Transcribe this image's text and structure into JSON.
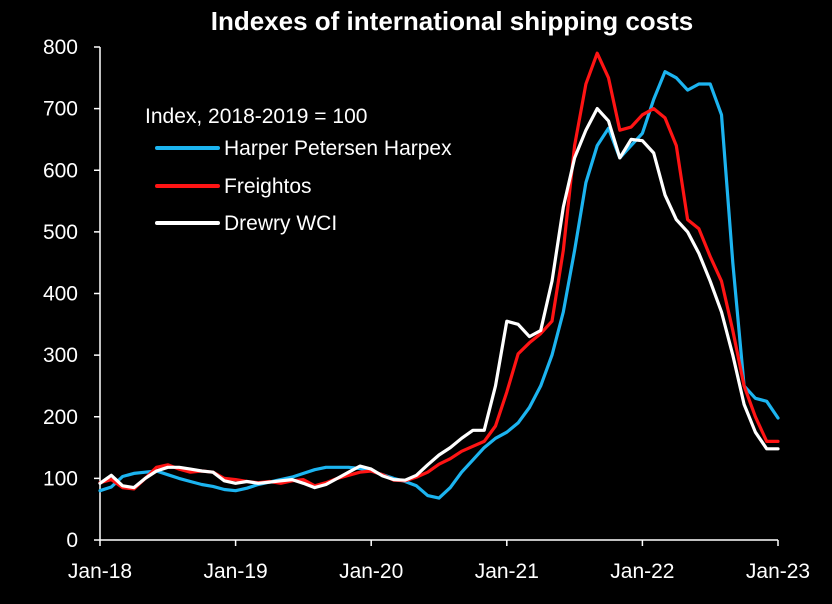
{
  "chart_data": {
    "type": "line",
    "title": "Indexes of international shipping costs",
    "xlabel": "",
    "ylabel": "",
    "legend_title": "Index, 2018-2019 = 100",
    "legend_position": "top-left",
    "grid": false,
    "xlim": [
      "2018-01",
      "2023-01"
    ],
    "ylim": [
      0,
      800
    ],
    "y_ticks": [
      0,
      100,
      200,
      300,
      400,
      500,
      600,
      700,
      800
    ],
    "x_ticks": [
      "Jan-18",
      "Jan-19",
      "Jan-20",
      "Jan-21",
      "Jan-22",
      "Jan-23"
    ],
    "series": [
      {
        "name": "Harper Petersen Harpex",
        "color": "#1cb4f0",
        "points": [
          [
            "2018-01",
            80
          ],
          [
            "2018-02",
            86
          ],
          [
            "2018-03",
            103
          ],
          [
            "2018-04",
            108
          ],
          [
            "2018-05",
            110
          ],
          [
            "2018-06",
            112
          ],
          [
            "2018-07",
            106
          ],
          [
            "2018-08",
            100
          ],
          [
            "2018-09",
            95
          ],
          [
            "2018-10",
            90
          ],
          [
            "2018-11",
            87
          ],
          [
            "2018-12",
            82
          ],
          [
            "2019-01",
            80
          ],
          [
            "2019-02",
            84
          ],
          [
            "2019-03",
            90
          ],
          [
            "2019-04",
            94
          ],
          [
            "2019-05",
            98
          ],
          [
            "2019-06",
            102
          ],
          [
            "2019-07",
            108
          ],
          [
            "2019-08",
            114
          ],
          [
            "2019-09",
            118
          ],
          [
            "2019-10",
            118
          ],
          [
            "2019-11",
            118
          ],
          [
            "2019-12",
            116
          ],
          [
            "2020-01",
            112
          ],
          [
            "2020-02",
            106
          ],
          [
            "2020-03",
            100
          ],
          [
            "2020-04",
            95
          ],
          [
            "2020-05",
            88
          ],
          [
            "2020-06",
            72
          ],
          [
            "2020-07",
            68
          ],
          [
            "2020-08",
            85
          ],
          [
            "2020-09",
            110
          ],
          [
            "2020-10",
            130
          ],
          [
            "2020-11",
            150
          ],
          [
            "2020-12",
            165
          ],
          [
            "2021-01",
            175
          ],
          [
            "2021-02",
            190
          ],
          [
            "2021-03",
            215
          ],
          [
            "2021-04",
            250
          ],
          [
            "2021-05",
            300
          ],
          [
            "2021-06",
            370
          ],
          [
            "2021-07",
            470
          ],
          [
            "2021-08",
            580
          ],
          [
            "2021-09",
            640
          ],
          [
            "2021-10",
            668
          ],
          [
            "2021-11",
            620
          ],
          [
            "2021-12",
            640
          ],
          [
            "2022-01",
            660
          ],
          [
            "2022-02",
            715
          ],
          [
            "2022-03",
            760
          ],
          [
            "2022-04",
            750
          ],
          [
            "2022-05",
            730
          ],
          [
            "2022-06",
            740
          ],
          [
            "2022-07",
            740
          ],
          [
            "2022-08",
            690
          ],
          [
            "2022-09",
            450
          ],
          [
            "2022-10",
            250
          ],
          [
            "2022-11",
            230
          ],
          [
            "2022-12",
            225
          ],
          [
            "2023-01",
            198
          ]
        ]
      },
      {
        "name": "Freightos",
        "color": "#ff1414",
        "points": [
          [
            "2018-01",
            93
          ],
          [
            "2018-02",
            98
          ],
          [
            "2018-03",
            85
          ],
          [
            "2018-04",
            83
          ],
          [
            "2018-05",
            100
          ],
          [
            "2018-06",
            118
          ],
          [
            "2018-07",
            122
          ],
          [
            "2018-08",
            115
          ],
          [
            "2018-09",
            110
          ],
          [
            "2018-10",
            112
          ],
          [
            "2018-11",
            110
          ],
          [
            "2018-12",
            100
          ],
          [
            "2019-01",
            98
          ],
          [
            "2019-02",
            95
          ],
          [
            "2019-03",
            93
          ],
          [
            "2019-04",
            95
          ],
          [
            "2019-05",
            92
          ],
          [
            "2019-06",
            96
          ],
          [
            "2019-07",
            98
          ],
          [
            "2019-08",
            88
          ],
          [
            "2019-09",
            93
          ],
          [
            "2019-10",
            100
          ],
          [
            "2019-11",
            105
          ],
          [
            "2019-12",
            110
          ],
          [
            "2020-01",
            112
          ],
          [
            "2020-02",
            106
          ],
          [
            "2020-03",
            97
          ],
          [
            "2020-04",
            96
          ],
          [
            "2020-05",
            102
          ],
          [
            "2020-06",
            110
          ],
          [
            "2020-07",
            123
          ],
          [
            "2020-08",
            132
          ],
          [
            "2020-09",
            144
          ],
          [
            "2020-10",
            152
          ],
          [
            "2020-11",
            160
          ],
          [
            "2020-12",
            185
          ],
          [
            "2021-01",
            240
          ],
          [
            "2021-02",
            302
          ],
          [
            "2021-03",
            320
          ],
          [
            "2021-04",
            335
          ],
          [
            "2021-05",
            355
          ],
          [
            "2021-06",
            470
          ],
          [
            "2021-07",
            640
          ],
          [
            "2021-08",
            740
          ],
          [
            "2021-09",
            790
          ],
          [
            "2021-10",
            750
          ],
          [
            "2021-11",
            665
          ],
          [
            "2021-12",
            670
          ],
          [
            "2022-01",
            690
          ],
          [
            "2022-02",
            700
          ],
          [
            "2022-03",
            685
          ],
          [
            "2022-04",
            640
          ],
          [
            "2022-05",
            520
          ],
          [
            "2022-06",
            505
          ],
          [
            "2022-07",
            460
          ],
          [
            "2022-08",
            420
          ],
          [
            "2022-09",
            340
          ],
          [
            "2022-10",
            250
          ],
          [
            "2022-11",
            200
          ],
          [
            "2022-12",
            160
          ],
          [
            "2023-01",
            160
          ]
        ]
      },
      {
        "name": "Drewry WCI",
        "color": "#ffffff",
        "points": [
          [
            "2018-01",
            92
          ],
          [
            "2018-02",
            105
          ],
          [
            "2018-03",
            88
          ],
          [
            "2018-04",
            85
          ],
          [
            "2018-05",
            100
          ],
          [
            "2018-06",
            112
          ],
          [
            "2018-07",
            118
          ],
          [
            "2018-08",
            118
          ],
          [
            "2018-09",
            115
          ],
          [
            "2018-10",
            112
          ],
          [
            "2018-11",
            110
          ],
          [
            "2018-12",
            96
          ],
          [
            "2019-01",
            92
          ],
          [
            "2019-02",
            95
          ],
          [
            "2019-03",
            92
          ],
          [
            "2019-04",
            94
          ],
          [
            "2019-05",
            96
          ],
          [
            "2019-06",
            98
          ],
          [
            "2019-07",
            92
          ],
          [
            "2019-08",
            85
          ],
          [
            "2019-09",
            90
          ],
          [
            "2019-10",
            100
          ],
          [
            "2019-11",
            110
          ],
          [
            "2019-12",
            120
          ],
          [
            "2020-01",
            115
          ],
          [
            "2020-02",
            104
          ],
          [
            "2020-03",
            98
          ],
          [
            "2020-04",
            97
          ],
          [
            "2020-05",
            105
          ],
          [
            "2020-06",
            122
          ],
          [
            "2020-07",
            138
          ],
          [
            "2020-08",
            150
          ],
          [
            "2020-09",
            165
          ],
          [
            "2020-10",
            178
          ],
          [
            "2020-11",
            178
          ],
          [
            "2020-12",
            250
          ],
          [
            "2021-01",
            355
          ],
          [
            "2021-02",
            350
          ],
          [
            "2021-03",
            330
          ],
          [
            "2021-04",
            340
          ],
          [
            "2021-05",
            420
          ],
          [
            "2021-06",
            540
          ],
          [
            "2021-07",
            620
          ],
          [
            "2021-08",
            665
          ],
          [
            "2021-09",
            700
          ],
          [
            "2021-10",
            680
          ],
          [
            "2021-11",
            620
          ],
          [
            "2021-12",
            650
          ],
          [
            "2022-01",
            648
          ],
          [
            "2022-02",
            628
          ],
          [
            "2022-03",
            560
          ],
          [
            "2022-04",
            520
          ],
          [
            "2022-05",
            500
          ],
          [
            "2022-06",
            465
          ],
          [
            "2022-07",
            420
          ],
          [
            "2022-08",
            370
          ],
          [
            "2022-09",
            300
          ],
          [
            "2022-10",
            220
          ],
          [
            "2022-11",
            175
          ],
          [
            "2022-12",
            148
          ],
          [
            "2023-01",
            148
          ]
        ]
      }
    ]
  }
}
